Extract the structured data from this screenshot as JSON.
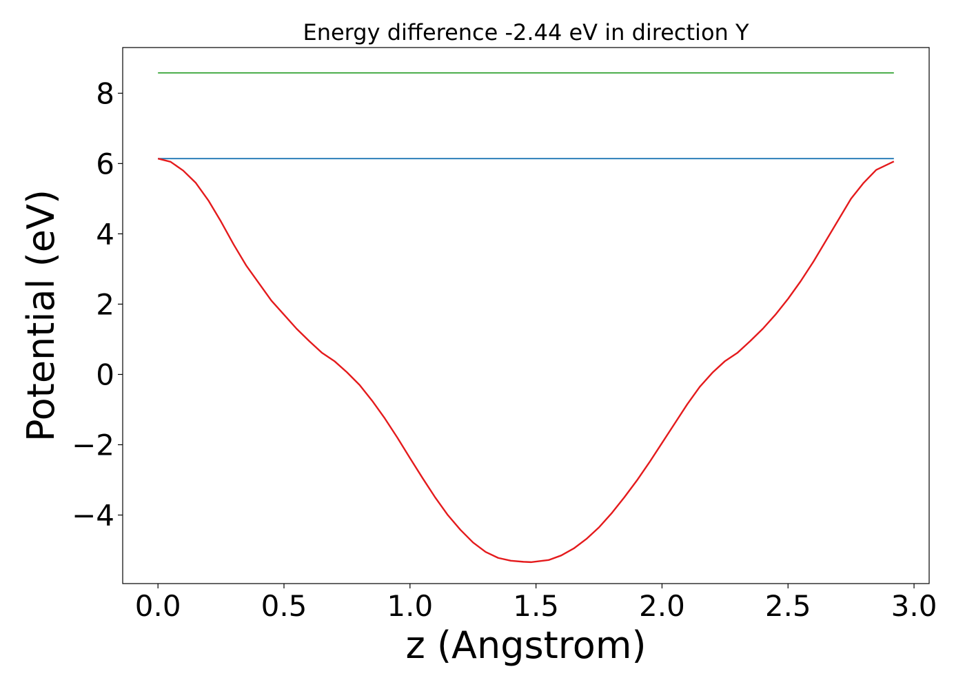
{
  "chart_data": {
    "type": "line",
    "title": "Energy difference -2.44 eV in direction Y",
    "xlabel": "z (Angstrom)",
    "ylabel": "Potential (eV)",
    "xlim": [
      -0.14,
      3.06
    ],
    "ylim": [
      -5.95,
      9.3
    ],
    "xticks": [
      0.0,
      0.5,
      1.0,
      1.5,
      2.0,
      2.5,
      3.0
    ],
    "xtick_labels": [
      "0.0",
      "0.5",
      "1.0",
      "1.5",
      "2.0",
      "2.5",
      "3.0"
    ],
    "yticks": [
      -4,
      -2,
      0,
      2,
      4,
      6,
      8
    ],
    "ytick_labels": [
      "−4",
      "−2",
      "0",
      "2",
      "4",
      "6",
      "8"
    ],
    "grid": false,
    "series": [
      {
        "color": "#2ca02c",
        "x": [
          0.0,
          2.92
        ],
        "y": [
          8.58,
          8.58
        ]
      },
      {
        "color": "#1f77b4",
        "x": [
          0.0,
          2.92
        ],
        "y": [
          6.14,
          6.14
        ]
      },
      {
        "color": "#e41a1c",
        "x": [
          0.0,
          0.05,
          0.1,
          0.15,
          0.2,
          0.25,
          0.3,
          0.35,
          0.4,
          0.45,
          0.5,
          0.55,
          0.6,
          0.65,
          0.7,
          0.75,
          0.8,
          0.85,
          0.9,
          0.95,
          1.0,
          1.05,
          1.1,
          1.15,
          1.2,
          1.25,
          1.3,
          1.35,
          1.4,
          1.45,
          1.48,
          1.55,
          1.6,
          1.65,
          1.7,
          1.75,
          1.8,
          1.85,
          1.9,
          1.95,
          2.0,
          2.05,
          2.1,
          2.15,
          2.2,
          2.25,
          2.3,
          2.35,
          2.4,
          2.45,
          2.5,
          2.55,
          2.6,
          2.65,
          2.7,
          2.75,
          2.8,
          2.85,
          2.92
        ],
        "y": [
          6.14,
          6.05,
          5.8,
          5.45,
          4.95,
          4.35,
          3.7,
          3.1,
          2.6,
          2.1,
          1.7,
          1.3,
          0.95,
          0.62,
          0.38,
          0.06,
          -0.3,
          -0.75,
          -1.25,
          -1.8,
          -2.38,
          -2.95,
          -3.5,
          -4.0,
          -4.42,
          -4.78,
          -5.05,
          -5.22,
          -5.3,
          -5.33,
          -5.34,
          -5.28,
          -5.15,
          -4.95,
          -4.68,
          -4.35,
          -3.95,
          -3.5,
          -3.02,
          -2.5,
          -1.95,
          -1.4,
          -0.85,
          -0.35,
          0.05,
          0.38,
          0.62,
          0.95,
          1.3,
          1.7,
          2.15,
          2.65,
          3.2,
          3.8,
          4.4,
          5.0,
          5.45,
          5.82,
          6.06
        ]
      }
    ]
  }
}
